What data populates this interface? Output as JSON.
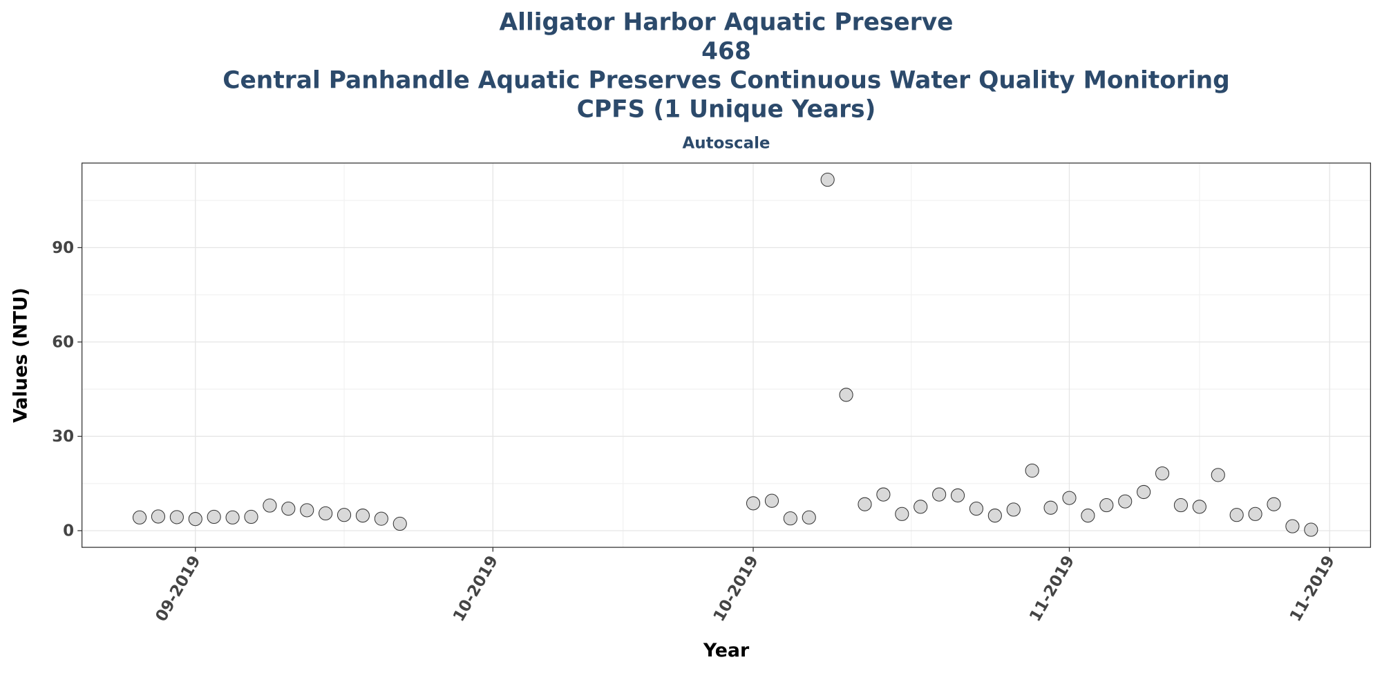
{
  "chart_data": {
    "type": "scatter",
    "title": [
      "Alligator Harbor Aquatic Preserve",
      "468",
      "Central Panhandle Aquatic Preserves Continuous Water Quality Monitoring",
      "CPFS (1 Unique Years)"
    ],
    "subtitle": "Autoscale",
    "x_label": "Year",
    "y_label": "Values (NTU)",
    "x": [
      -3,
      -2,
      -1,
      0,
      1,
      2,
      3,
      4,
      5,
      6,
      7,
      8,
      9,
      10,
      11,
      30,
      31,
      32,
      33,
      34,
      35,
      36,
      37,
      38,
      39,
      40,
      41,
      42,
      43,
      44,
      45,
      46,
      47,
      48,
      49,
      50,
      51,
      52,
      53,
      54,
      55,
      56,
      57,
      58,
      59,
      60
    ],
    "values": [
      4.2,
      4.5,
      4.3,
      3.7,
      4.4,
      4.2,
      4.4,
      8.0,
      7.0,
      6.5,
      5.5,
      5.0,
      4.8,
      3.8,
      2.2,
      8.7,
      9.5,
      3.9,
      4.2,
      111.6,
      43.2,
      8.4,
      11.5,
      5.3,
      7.6,
      11.5,
      11.2,
      7.0,
      4.8,
      6.7,
      19.1,
      7.3,
      10.4,
      4.8,
      8.1,
      9.3,
      12.3,
      18.2,
      8.1,
      7.6,
      17.7,
      5.0,
      5.3,
      8.4,
      1.4,
      0.3
    ],
    "color": "#d9d9d9",
    "edge_color": "#333333",
    "xlim": [
      -6.1,
      63.2
    ],
    "xticks": [
      {
        "value": 0,
        "label": "09-2019"
      },
      {
        "value": 16,
        "label": "10-2019"
      },
      {
        "value": 30,
        "label": "10-2019"
      },
      {
        "value": 47,
        "label": "11-2019"
      },
      {
        "value": 61,
        "label": "11-2019"
      }
    ],
    "ylim": [
      -5.3,
      116.9
    ],
    "yticks": [
      0,
      30,
      60,
      90
    ],
    "grid": true
  }
}
